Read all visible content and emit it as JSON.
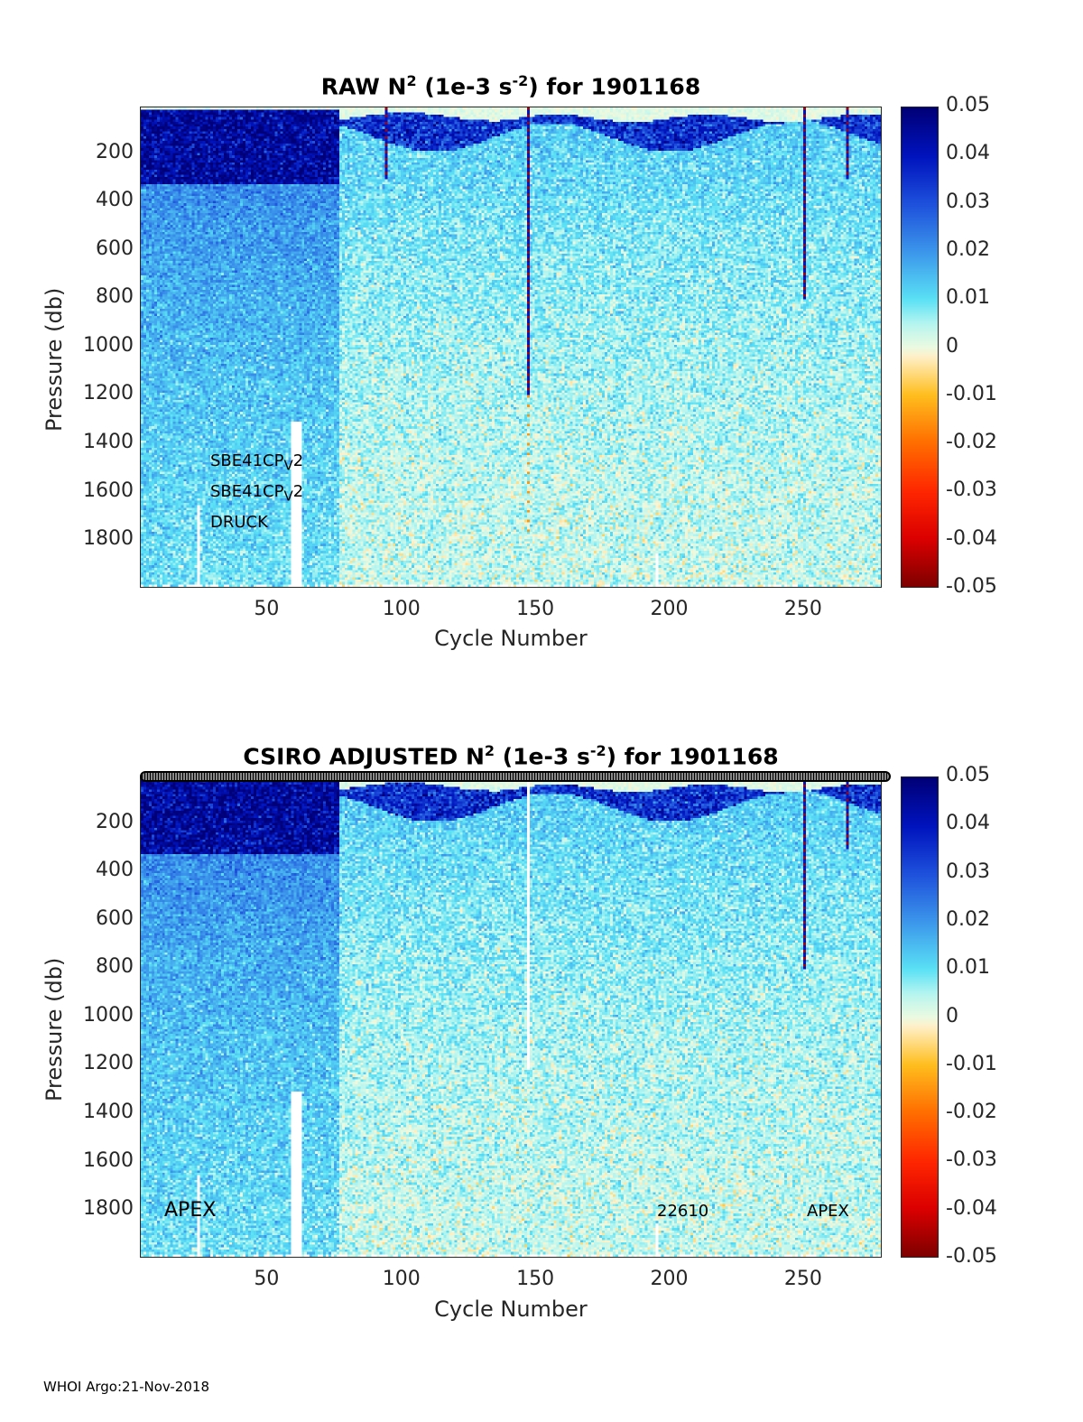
{
  "chart_data": [
    {
      "type": "heatmap",
      "title_main": "RAW N",
      "title_sup": "2",
      "title_units_pre": " (1e-3 s",
      "title_units_sup": "-2",
      "title_post": ") for 1901168",
      "xlabel": "Cycle Number",
      "ylabel": "Pressure (db)",
      "xlim": [
        1,
        277
      ],
      "ylim": [
        0,
        2000
      ],
      "y_reversed": true,
      "xticks": [
        50,
        100,
        150,
        200,
        250
      ],
      "yticks": [
        200,
        400,
        600,
        800,
        1000,
        1200,
        1400,
        1600,
        1800
      ],
      "clim": [
        -0.05,
        0.05
      ],
      "cticks": [
        "0.05",
        "0.04",
        "0.03",
        "0.02",
        "0.01",
        "0",
        "-0.01",
        "-0.02",
        "-0.03",
        "-0.04",
        "-0.05"
      ],
      "annotations": [
        {
          "text": "SBE41CP",
          "sub": "V",
          "post": "2"
        },
        {
          "text": "SBE41CP",
          "sub": "V",
          "post": "2"
        },
        {
          "text": "DRUCK",
          "sub": "",
          "post": ""
        }
      ],
      "streak_cycles": [
        92,
        145,
        248,
        264
      ]
    },
    {
      "type": "heatmap",
      "title_main": "CSIRO  ADJUSTED N",
      "title_sup": "2",
      "title_units_pre": " (1e-3 s",
      "title_units_sup": "-2",
      "title_post": ") for 1901168",
      "xlabel": "Cycle Number",
      "ylabel": "Pressure (db)",
      "xlim": [
        1,
        277
      ],
      "ylim": [
        0,
        2000
      ],
      "y_reversed": true,
      "xticks": [
        50,
        100,
        150,
        200,
        250
      ],
      "yticks": [
        200,
        400,
        600,
        800,
        1000,
        1200,
        1400,
        1600,
        1800
      ],
      "clim": [
        -0.05,
        0.05
      ],
      "cticks": [
        "0.05",
        "0.04",
        "0.03",
        "0.02",
        "0.01",
        "0",
        "-0.01",
        "-0.02",
        "-0.03",
        "-0.04",
        "-0.05"
      ],
      "annotations": [
        {
          "text": "APEX"
        },
        {
          "text": "22610"
        },
        {
          "text": "APEX"
        }
      ],
      "streak_cycles": [
        248,
        264
      ]
    }
  ],
  "footer": "WHOI Argo:21-Nov-2018"
}
